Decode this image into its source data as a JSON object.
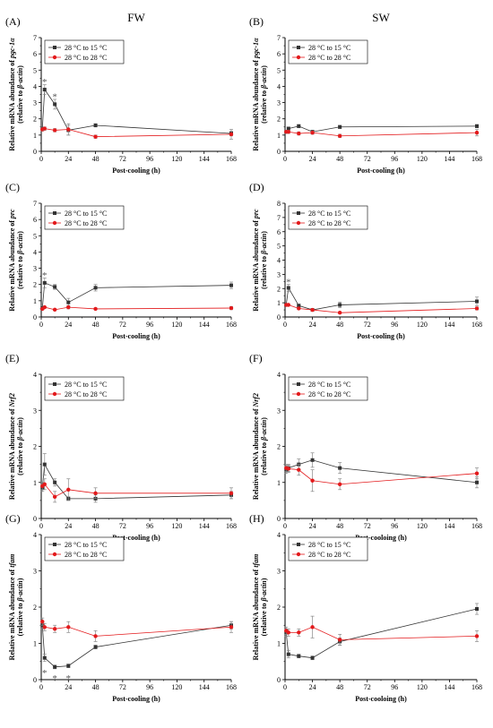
{
  "column_headers": [
    "FW",
    "SW"
  ],
  "colors": {
    "cooling": "#333333",
    "control": "#e31a1c",
    "axis": "#000000",
    "error": "#888888"
  },
  "legend_entries": [
    "28 °C to 15 °C",
    "28 °C to 28 °C"
  ],
  "chart_data": [
    {
      "type": "line",
      "panel": "(A)",
      "column": "FW",
      "xlabel": "Post-cooling (h)",
      "ylabel_prefix": "Relative mRNA abundance of ",
      "ylabel_gene": "pgc-1α",
      "ylabel_line2_prefix": "(relative to ",
      "ylabel_line2_gene": "β-actin",
      "ylabel_line2_suffix": ")",
      "xlim": [
        0,
        168
      ],
      "xticks": [
        0,
        24,
        48,
        72,
        96,
        120,
        144,
        168
      ],
      "ylim": [
        0,
        7
      ],
      "yticks": [
        0,
        1,
        2,
        3,
        4,
        5,
        6,
        7
      ],
      "legend_location": "top-left",
      "grid": false,
      "x": [
        1,
        3,
        12,
        24,
        48,
        168
      ],
      "series": [
        {
          "name": "28 °C to 15 °C",
          "values": [
            1.4,
            3.8,
            2.9,
            1.3,
            1.6,
            1.1
          ],
          "errors": [
            0.1,
            0.3,
            0.3,
            0.3,
            0.1,
            0.15
          ]
        },
        {
          "name": "28 °C to 28 °C",
          "values": [
            1.35,
            1.4,
            1.3,
            1.35,
            0.9,
            1.05
          ],
          "errors": [
            0.1,
            0.1,
            0.1,
            0.35,
            0.1,
            0.3
          ]
        }
      ],
      "significance": [
        {
          "x": 3,
          "y": 4.3,
          "label": "*"
        },
        {
          "x": 12,
          "y": 3.4,
          "label": "*"
        }
      ]
    },
    {
      "type": "line",
      "panel": "(B)",
      "column": "SW",
      "xlabel": "Post-cooling (h)",
      "ylabel_prefix": "Relative mRNA abundance of ",
      "ylabel_gene": "pgc-1α",
      "ylabel_line2_prefix": "(relative to ",
      "ylabel_line2_gene": "β-actin",
      "ylabel_line2_suffix": ")",
      "xlim": [
        0,
        168
      ],
      "xticks": [
        0,
        24,
        48,
        72,
        96,
        120,
        144,
        168
      ],
      "ylim": [
        0,
        7
      ],
      "yticks": [
        0,
        1,
        2,
        3,
        4,
        5,
        6,
        7
      ],
      "legend_location": "top-left",
      "grid": false,
      "x": [
        1,
        3,
        12,
        24,
        48,
        168
      ],
      "series": [
        {
          "name": "28 °C to 15 °C",
          "values": [
            1.2,
            1.4,
            1.55,
            1.2,
            1.5,
            1.55
          ],
          "errors": [
            0.1,
            0.1,
            0.1,
            0.1,
            0.1,
            0.1
          ]
        },
        {
          "name": "28 °C to 28 °C",
          "values": [
            1.2,
            1.2,
            1.1,
            1.15,
            0.95,
            1.15
          ],
          "errors": [
            0.1,
            0.1,
            0.1,
            0.1,
            0.1,
            0.2
          ]
        }
      ],
      "significance": []
    },
    {
      "type": "line",
      "panel": "(C)",
      "column": "FW",
      "xlabel": "Post-cooling (h)",
      "ylabel_prefix": "Relative mRNA abundance of ",
      "ylabel_gene": "prc",
      "ylabel_line2_prefix": "(relative to ",
      "ylabel_line2_gene": "β-actin",
      "ylabel_line2_suffix": ")",
      "xlim": [
        0,
        168
      ],
      "xticks": [
        0,
        24,
        48,
        72,
        96,
        120,
        144,
        168
      ],
      "ylim": [
        0,
        7
      ],
      "yticks": [
        0,
        1,
        2,
        3,
        4,
        5,
        6,
        7
      ],
      "legend_location": "top-left",
      "grid": false,
      "x": [
        1,
        3,
        12,
        24,
        48,
        168
      ],
      "series": [
        {
          "name": "28 °C to 15 °C",
          "values": [
            0.55,
            2.1,
            1.85,
            0.9,
            1.8,
            1.95
          ],
          "errors": [
            0.1,
            0.3,
            0.15,
            0.25,
            0.2,
            0.2
          ]
        },
        {
          "name": "28 °C to 28 °C",
          "values": [
            0.5,
            0.6,
            0.45,
            0.6,
            0.5,
            0.55
          ],
          "errors": [
            0.05,
            0.05,
            0.05,
            0.1,
            0.05,
            0.1
          ]
        }
      ],
      "significance": [
        {
          "x": 3,
          "y": 2.6,
          "label": "*"
        }
      ]
    },
    {
      "type": "line",
      "panel": "(D)",
      "column": "SW",
      "xlabel": "Post-cooling (h)",
      "ylabel_prefix": "Relative mRNA abundance of ",
      "ylabel_gene": "prc",
      "ylabel_line2_prefix": "(relative to ",
      "ylabel_line2_gene": "β-actin",
      "ylabel_line2_suffix": ")",
      "xlim": [
        0,
        168
      ],
      "xticks": [
        0,
        24,
        48,
        72,
        96,
        120,
        144,
        168
      ],
      "ylim": [
        0,
        8
      ],
      "yticks": [
        0,
        1,
        2,
        3,
        4,
        5,
        6,
        7,
        8
      ],
      "legend_location": "top-left",
      "grid": false,
      "x": [
        1,
        3,
        12,
        24,
        48,
        168
      ],
      "series": [
        {
          "name": "28 °C to 15 °C",
          "values": [
            0.85,
            2.05,
            0.8,
            0.5,
            0.85,
            1.1
          ],
          "errors": [
            0.1,
            0.25,
            0.1,
            0.1,
            0.2,
            0.3
          ]
        },
        {
          "name": "28 °C to 28 °C",
          "values": [
            0.85,
            0.85,
            0.6,
            0.5,
            0.3,
            0.6
          ],
          "errors": [
            0.05,
            0.05,
            0.05,
            0.1,
            0.05,
            0.1
          ]
        }
      ],
      "significance": [
        {
          "x": 3,
          "y": 2.5,
          "label": "*"
        }
      ]
    },
    {
      "type": "line",
      "panel": "(E)",
      "column": "FW",
      "xlabel": "Post-cooling (h)",
      "ylabel_prefix": "Relative mRNA abundance of ",
      "ylabel_gene": "Nrf2",
      "ylabel_line2_prefix": "(relative to ",
      "ylabel_line2_gene": "β-actin",
      "ylabel_line2_suffix": ")",
      "xlim": [
        0,
        168
      ],
      "xticks": [
        0,
        24,
        48,
        72,
        96,
        120,
        144,
        168
      ],
      "ylim": [
        0,
        4
      ],
      "yticks": [
        0,
        1,
        2,
        3,
        4
      ],
      "legend_location": "top-left",
      "grid": false,
      "x": [
        1,
        3,
        12,
        24,
        48,
        168
      ],
      "series": [
        {
          "name": "28 °C to 15 °C",
          "values": [
            0.85,
            1.5,
            1.0,
            0.55,
            0.55,
            0.65
          ],
          "errors": [
            0.1,
            0.3,
            0.1,
            0.05,
            0.1,
            0.1
          ]
        },
        {
          "name": "28 °C to 28 °C",
          "values": [
            0.9,
            0.95,
            0.6,
            0.8,
            0.7,
            0.7
          ],
          "errors": [
            0.1,
            0.15,
            0.15,
            0.3,
            0.15,
            0.15
          ]
        }
      ],
      "significance": []
    },
    {
      "type": "line",
      "panel": "(F)",
      "column": "SW",
      "xlabel": "Post-cooloing (h)",
      "ylabel_prefix": "Relative mRNA abundance of ",
      "ylabel_gene": "Nrf2",
      "ylabel_line2_prefix": "(relative to ",
      "ylabel_line2_gene": "β-actin",
      "ylabel_line2_suffix": ")",
      "xlim": [
        0,
        168
      ],
      "xticks": [
        0,
        24,
        48,
        72,
        96,
        120,
        144,
        168
      ],
      "ylim": [
        0,
        4
      ],
      "yticks": [
        0,
        1,
        2,
        3,
        4
      ],
      "legend_location": "top-left",
      "grid": false,
      "x": [
        1,
        3,
        12,
        24,
        48,
        168
      ],
      "series": [
        {
          "name": "28 °C to 15 °C",
          "values": [
            1.35,
            1.4,
            1.5,
            1.62,
            1.4,
            1.0
          ],
          "errors": [
            0.1,
            0.1,
            0.15,
            0.2,
            0.15,
            0.15
          ]
        },
        {
          "name": "28 °C to 28 °C",
          "values": [
            1.4,
            1.38,
            1.35,
            1.05,
            0.95,
            1.25
          ],
          "errors": [
            0.1,
            0.1,
            0.15,
            0.3,
            0.15,
            0.15
          ]
        }
      ],
      "significance": []
    },
    {
      "type": "line",
      "panel": "(G)",
      "column": "FW",
      "xlabel": "Post-cooling (h)",
      "ylabel_prefix": "Relative mRNA abundance of ",
      "ylabel_gene": "tfam",
      "ylabel_line2_prefix": "(relative to ",
      "ylabel_line2_gene": "β-actin",
      "ylabel_line2_suffix": ")",
      "xlim": [
        0,
        168
      ],
      "xticks": [
        0,
        24,
        48,
        72,
        96,
        120,
        144,
        168
      ],
      "ylim": [
        0,
        4
      ],
      "yticks": [
        0,
        1,
        2,
        3,
        4
      ],
      "legend_location": "top-left",
      "grid": false,
      "x": [
        1,
        3,
        12,
        24,
        48,
        168
      ],
      "series": [
        {
          "name": "28 °C to 15 °C",
          "values": [
            1.5,
            0.6,
            0.35,
            0.38,
            0.9,
            1.5
          ],
          "errors": [
            0.1,
            0.1,
            0.05,
            0.05,
            0.05,
            0.1
          ]
        },
        {
          "name": "28 °C to 28 °C",
          "values": [
            1.6,
            1.45,
            1.4,
            1.45,
            1.2,
            1.45
          ],
          "errors": [
            0.1,
            0.1,
            0.1,
            0.15,
            0.15,
            0.15
          ]
        }
      ],
      "significance": [
        {
          "x": 3,
          "y": 0.2,
          "label": "*"
        },
        {
          "x": 12,
          "y": 0.05,
          "label": "*"
        },
        {
          "x": 24,
          "y": 0.05,
          "label": "*"
        }
      ]
    },
    {
      "type": "line",
      "panel": "(H)",
      "column": "SW",
      "xlabel": "Post-cooloing (h)",
      "ylabel_prefix": "Relative mRNA abundance of ",
      "ylabel_gene": "tfam",
      "ylabel_line2_prefix": "(relative to ",
      "ylabel_line2_gene": "β-actin",
      "ylabel_line2_suffix": ")",
      "xlim": [
        0,
        168
      ],
      "xticks": [
        0,
        24,
        48,
        72,
        96,
        120,
        144,
        168
      ],
      "ylim": [
        0,
        4
      ],
      "yticks": [
        0,
        1,
        2,
        3,
        4
      ],
      "legend_location": "top-left",
      "grid": false,
      "x": [
        1,
        3,
        12,
        24,
        48,
        168
      ],
      "series": [
        {
          "name": "28 °C to 15 °C",
          "values": [
            1.3,
            0.7,
            0.65,
            0.6,
            1.05,
            1.95
          ],
          "errors": [
            0.1,
            0.1,
            0.05,
            0.05,
            0.1,
            0.15
          ]
        },
        {
          "name": "28 °C to 28 °C",
          "values": [
            1.35,
            1.3,
            1.3,
            1.45,
            1.1,
            1.2
          ],
          "errors": [
            0.1,
            0.1,
            0.1,
            0.3,
            0.15,
            0.15
          ]
        }
      ],
      "significance": []
    }
  ]
}
